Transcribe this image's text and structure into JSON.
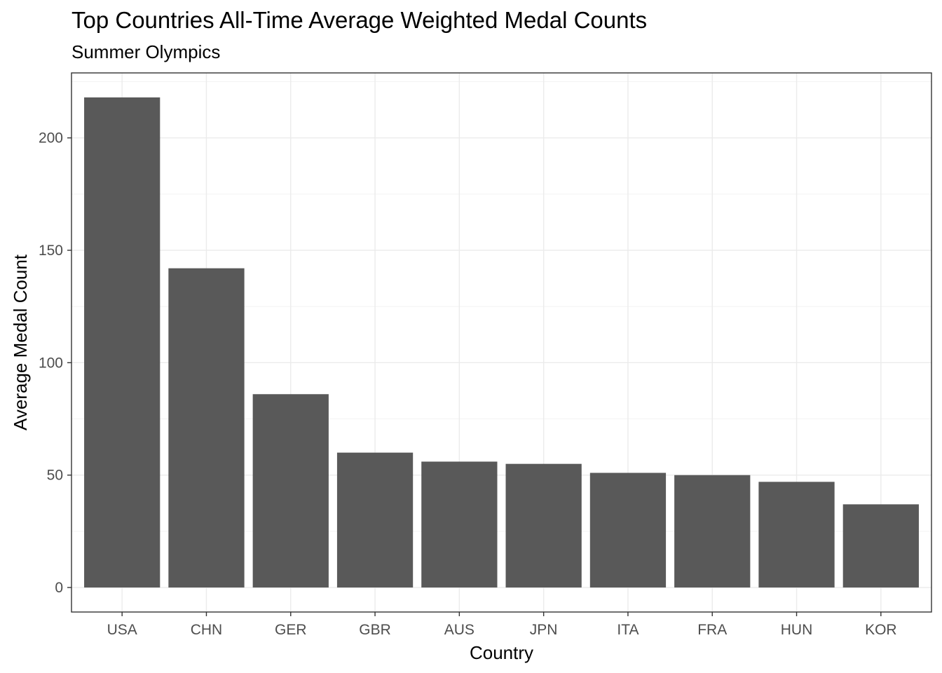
{
  "chart_data": {
    "type": "bar",
    "title": "Top Countries All-Time Average Weighted Medal Counts",
    "subtitle": "Summer Olympics",
    "xlabel": "Country",
    "ylabel": "Average Medal Count",
    "categories": [
      "USA",
      "CHN",
      "GER",
      "GBR",
      "AUS",
      "JPN",
      "ITA",
      "FRA",
      "HUN",
      "KOR"
    ],
    "values": [
      218,
      142,
      86,
      60,
      56,
      55,
      51,
      50,
      47,
      37
    ],
    "ylim": [
      -10.9,
      228.9
    ],
    "yticks": [
      0,
      50,
      100,
      150,
      200
    ],
    "grid": true,
    "legend": "none",
    "colors": {
      "bar": "#595959",
      "grid_major": "#ebebeb",
      "grid_minor": "#f3f3f3",
      "panel_border": "#333333",
      "tick_text": "#4d4d4d"
    }
  }
}
